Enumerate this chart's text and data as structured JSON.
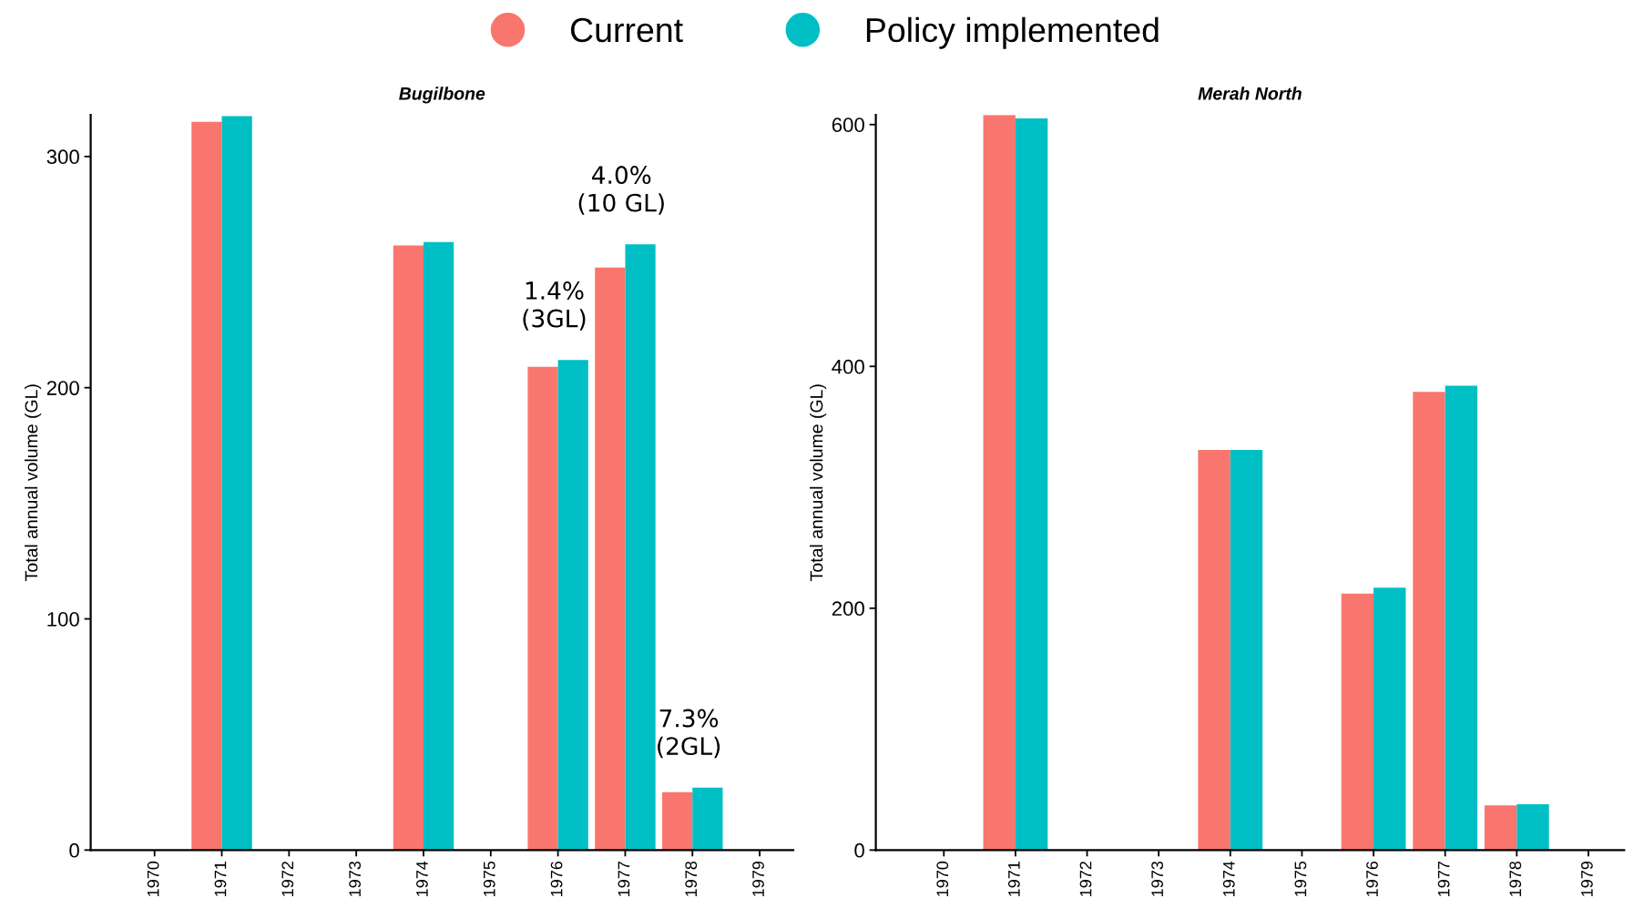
{
  "chart_data": [
    {
      "type": "bar",
      "title": "Bugilbone",
      "ylabel": "Total annual volume (GL)",
      "categories": [
        "1970",
        "1971",
        "1972",
        "1973",
        "1974",
        "1975",
        "1976",
        "1977",
        "1978",
        "1979"
      ],
      "series": [
        {
          "name": "Current",
          "color": "#f8766d",
          "values": [
            null,
            315,
            null,
            null,
            261.5,
            null,
            209,
            252,
            25,
            null
          ]
        },
        {
          "name": "Policy implemented",
          "color": "#00bfc4",
          "values": [
            null,
            317.5,
            null,
            null,
            263,
            null,
            212,
            262,
            27,
            null
          ]
        }
      ],
      "ylim": [
        0,
        318
      ],
      "yticks": [
        0,
        100,
        200,
        300
      ],
      "grid": false,
      "legend": "top",
      "annotations": [
        {
          "text": "1.4%\n(3GL)",
          "x": "1976",
          "y": 212
        },
        {
          "text": "4.0%\n(10 GL)",
          "x": "1977",
          "y": 262
        },
        {
          "text": "7.3%\n(2GL)",
          "x": "1978",
          "y": 27
        }
      ]
    },
    {
      "type": "bar",
      "title": "Merah North",
      "ylabel": "Total annual volume (GL)",
      "categories": [
        "1970",
        "1971",
        "1972",
        "1973",
        "1974",
        "1975",
        "1976",
        "1977",
        "1978",
        "1979"
      ],
      "series": [
        {
          "name": "Current",
          "color": "#f8766d",
          "values": [
            null,
            608,
            null,
            null,
            331,
            null,
            212,
            379,
            37,
            null
          ]
        },
        {
          "name": "Policy implemented",
          "color": "#00bfc4",
          "values": [
            null,
            605,
            null,
            null,
            331,
            null,
            217,
            384,
            38,
            null
          ]
        }
      ],
      "ylim": [
        0,
        608
      ],
      "yticks": [
        0,
        200,
        400,
        600
      ],
      "grid": false
    }
  ]
}
